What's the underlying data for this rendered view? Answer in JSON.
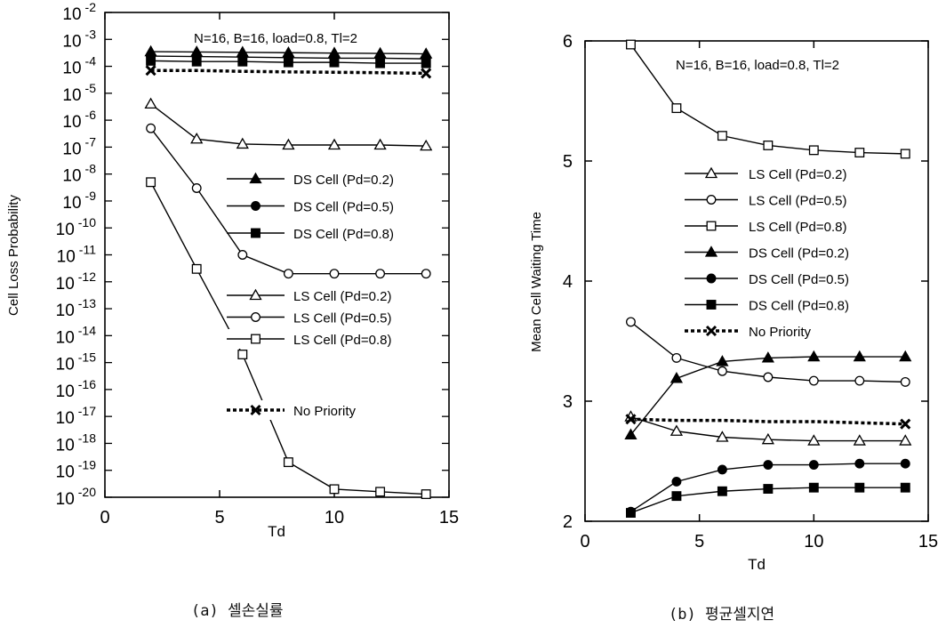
{
  "chart_data": [
    {
      "type": "line",
      "caption": "(a) 셀손실률",
      "annotation": "N=16, B=16, load=0.8, Tl=2",
      "xlabel": "Td",
      "ylabel": "Cell Loss Probability",
      "xlim": [
        0,
        15
      ],
      "xticks": [
        "0",
        "5",
        "10",
        "15"
      ],
      "yscale": "log",
      "ylim": [
        1e-20,
        0.01
      ],
      "yticks": [
        {
          "base": "10",
          "exp": "-2"
        },
        {
          "base": "10",
          "exp": "-3"
        },
        {
          "base": "10",
          "exp": "-4"
        },
        {
          "base": "10",
          "exp": "-5"
        },
        {
          "base": "10",
          "exp": "-6"
        },
        {
          "base": "10",
          "exp": "-7"
        },
        {
          "base": "10",
          "exp": "-8"
        },
        {
          "base": "10",
          "exp": "-9"
        },
        {
          "base": "10",
          "exp": "-10"
        },
        {
          "base": "10",
          "exp": "-11"
        },
        {
          "base": "10",
          "exp": "-12"
        },
        {
          "base": "10",
          "exp": "-13"
        },
        {
          "base": "10",
          "exp": "-14"
        },
        {
          "base": "10",
          "exp": "-15"
        },
        {
          "base": "10",
          "exp": "-16"
        },
        {
          "base": "10",
          "exp": "-17"
        },
        {
          "base": "10",
          "exp": "-18"
        },
        {
          "base": "10",
          "exp": "-19"
        },
        {
          "base": "10",
          "exp": "-20"
        }
      ],
      "grid": false,
      "legend_position": "right",
      "series": [
        {
          "name": "DS Cell (Pd=0.2)",
          "marker": "triangle-filled",
          "style": "solid",
          "x": [
            2,
            4,
            6,
            8,
            10,
            12,
            14
          ],
          "y": [
            0.00035,
            0.00034,
            0.00033,
            0.00032,
            0.00031,
            0.0003,
            0.00029
          ]
        },
        {
          "name": "DS Cell (Pd=0.5)",
          "marker": "circle-filled",
          "style": "solid",
          "x": [
            2,
            4,
            6,
            8,
            10,
            12,
            14
          ],
          "y": [
            0.00024,
            0.00023,
            0.00022,
            0.00021,
            0.0002,
            0.0002,
            0.00019
          ]
        },
        {
          "name": "DS Cell (Pd=0.8)",
          "marker": "square-filled",
          "style": "solid",
          "x": [
            2,
            4,
            6,
            8,
            10,
            12,
            14
          ],
          "y": [
            0.00016,
            0.00015,
            0.00015,
            0.00014,
            0.00014,
            0.00013,
            0.00013
          ]
        },
        {
          "name": "LS Cell (Pd=0.2)",
          "marker": "triangle-open",
          "style": "solid",
          "x": [
            2,
            4,
            6,
            8,
            10,
            12,
            14
          ],
          "y": [
            4e-06,
            2e-07,
            1.3e-07,
            1.2e-07,
            1.2e-07,
            1.2e-07,
            1.1e-07
          ]
        },
        {
          "name": "LS Cell (Pd=0.5)",
          "marker": "circle-open",
          "style": "solid",
          "x": [
            2,
            4,
            6,
            8,
            10,
            12,
            14
          ],
          "y": [
            5e-07,
            3e-09,
            1e-11,
            2e-12,
            2e-12,
            2e-12,
            2e-12
          ]
        },
        {
          "name": "LS Cell (Pd=0.8)",
          "marker": "square-open",
          "style": "solid",
          "x": [
            2,
            4,
            6,
            8,
            10,
            12,
            14
          ],
          "y": [
            5e-09,
            3e-12,
            2e-15,
            2e-19,
            2e-20,
            1.6e-20,
            1.3e-20
          ]
        },
        {
          "name": "No Priority",
          "marker": "cross",
          "style": "dotted",
          "x": [
            2,
            4,
            6,
            8,
            10,
            12,
            14
          ],
          "y": [
            7e-05,
            7e-05,
            6.5e-05,
            6.2e-05,
            6e-05,
            5.8e-05,
            5.5e-05
          ]
        }
      ]
    },
    {
      "type": "line",
      "caption": "(b) 평균셀지연",
      "annotation": "N=16, B=16, load=0.8, Tl=2",
      "xlabel": "Td",
      "ylabel": "Mean Cell Waiting Time",
      "xlim": [
        0,
        15
      ],
      "xticks": [
        "0",
        "5",
        "10",
        "15"
      ],
      "ylim": [
        2,
        6
      ],
      "yticks": [
        "2",
        "3",
        "4",
        "5",
        "6"
      ],
      "grid": false,
      "legend_position": "right",
      "series": [
        {
          "name": "LS Cell (Pd=0.2)",
          "marker": "triangle-open",
          "style": "solid",
          "x": [
            2,
            4,
            6,
            8,
            10,
            12,
            14
          ],
          "y": [
            2.87,
            2.75,
            2.7,
            2.68,
            2.67,
            2.67,
            2.67
          ]
        },
        {
          "name": "LS Cell (Pd=0.5)",
          "marker": "circle-open",
          "style": "solid",
          "x": [
            2,
            4,
            6,
            8,
            10,
            12,
            14
          ],
          "y": [
            3.66,
            3.36,
            3.25,
            3.2,
            3.17,
            3.17,
            3.16
          ]
        },
        {
          "name": "LS Cell (Pd=0.8)",
          "marker": "square-open",
          "style": "solid",
          "x": [
            2,
            4,
            6,
            8,
            10,
            12,
            14
          ],
          "y": [
            5.97,
            5.44,
            5.21,
            5.13,
            5.09,
            5.07,
            5.06
          ]
        },
        {
          "name": "DS Cell (Pd=0.2)",
          "marker": "triangle-filled",
          "style": "solid",
          "x": [
            2,
            4,
            6,
            8,
            10,
            12,
            14
          ],
          "y": [
            2.72,
            3.19,
            3.33,
            3.36,
            3.37,
            3.37,
            3.37
          ]
        },
        {
          "name": "DS Cell (Pd=0.5)",
          "marker": "circle-filled",
          "style": "solid",
          "x": [
            2,
            4,
            6,
            8,
            10,
            12,
            14
          ],
          "y": [
            2.08,
            2.33,
            2.43,
            2.47,
            2.47,
            2.48,
            2.48
          ]
        },
        {
          "name": "DS Cell (Pd=0.8)",
          "marker": "square-filled",
          "style": "solid",
          "x": [
            2,
            4,
            6,
            8,
            10,
            12,
            14
          ],
          "y": [
            2.07,
            2.21,
            2.25,
            2.27,
            2.28,
            2.28,
            2.28
          ]
        },
        {
          "name": "No Priority",
          "marker": "cross",
          "style": "dotted",
          "x": [
            2,
            4,
            6,
            8,
            10,
            12,
            14
          ],
          "y": [
            2.85,
            2.84,
            2.84,
            2.83,
            2.83,
            2.82,
            2.81
          ]
        }
      ]
    }
  ]
}
